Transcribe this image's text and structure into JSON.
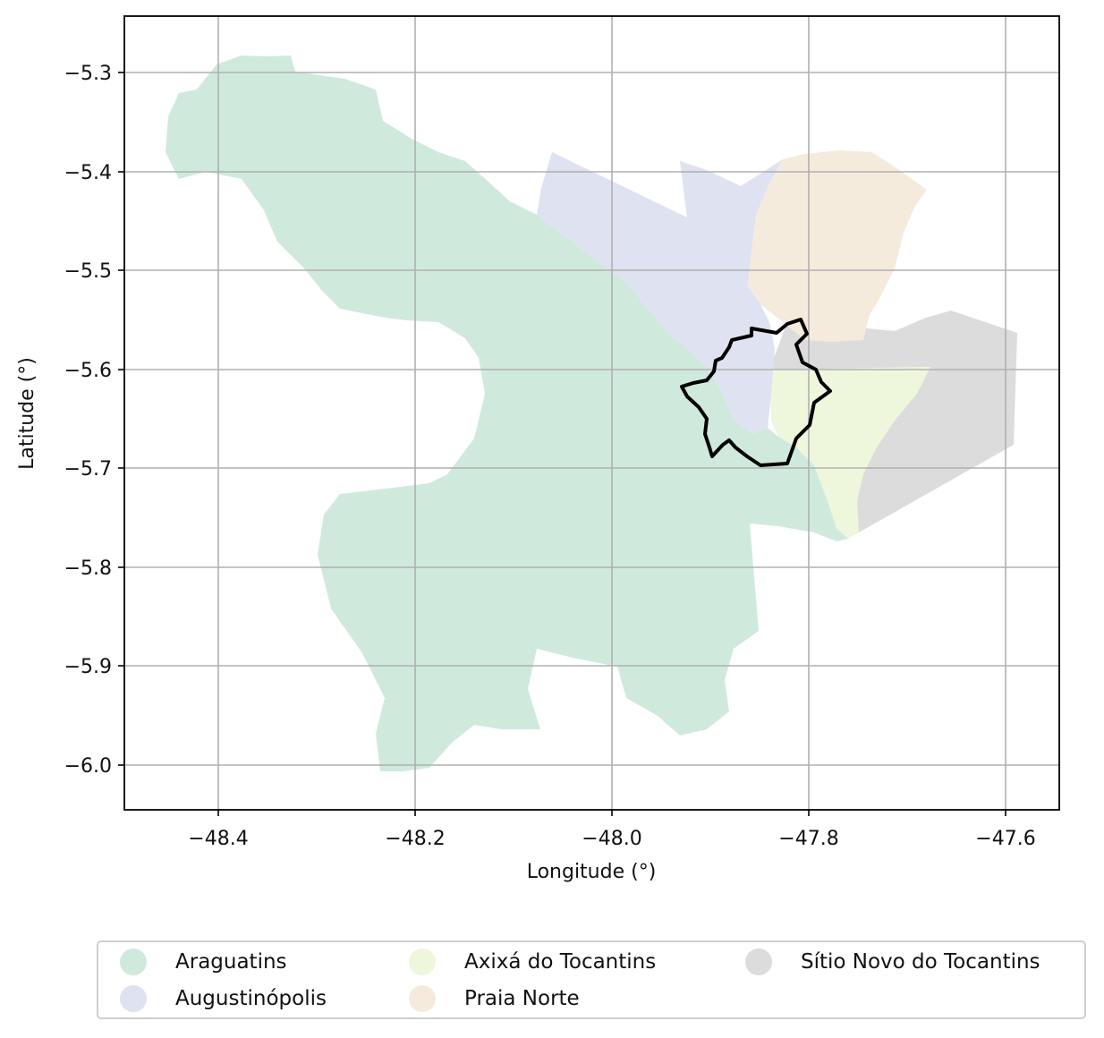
{
  "map": {
    "xlabel": "Longitude (°)",
    "ylabel": "Latitude (°)",
    "x_ticks": [
      "−48.4",
      "−48.2",
      "−48.0",
      "−47.8",
      "−47.6"
    ],
    "y_ticks": [
      "−5.3",
      "−5.4",
      "−5.5",
      "−5.6",
      "−5.7",
      "−5.8",
      "−5.9",
      "−6.0"
    ],
    "regions": [
      {
        "name": "Araguatins",
        "color": "#cfeadd"
      },
      {
        "name": "Augustinópolis",
        "color": "#dee2f1"
      },
      {
        "name": "Axixá do Tocantins",
        "color": "#eef7dc"
      },
      {
        "name": "Praia Norte",
        "color": "#f5ebdd"
      },
      {
        "name": "Sítio Novo do Tocantins",
        "color": "#dcdcdc"
      }
    ],
    "outline_color": "#000000"
  }
}
